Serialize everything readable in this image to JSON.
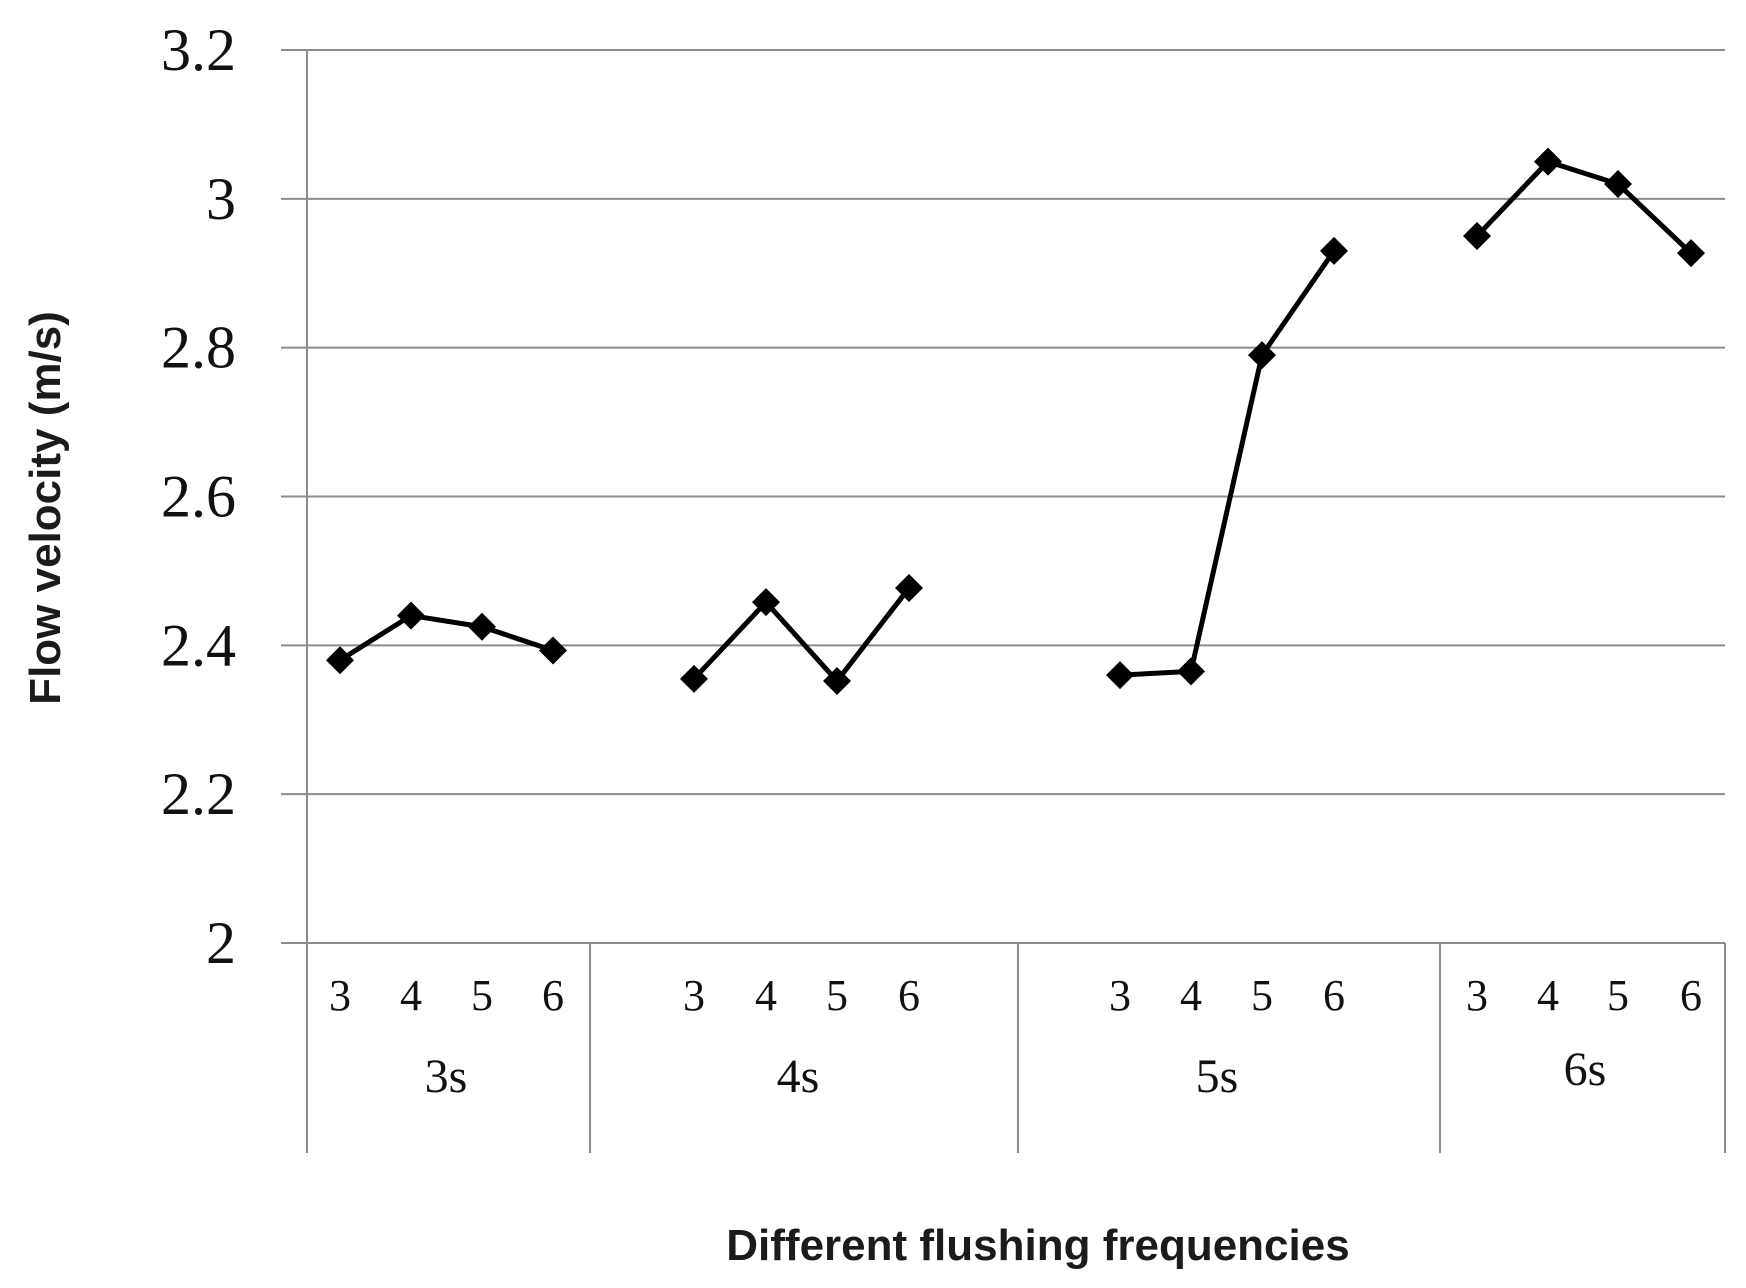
{
  "chart_data": {
    "type": "line",
    "xlabel": "Different flushing frequencies",
    "ylabel": "Flow velocity (m/s)",
    "ylim": [
      2,
      3.2
    ],
    "yticks": [
      "2",
      "2.2",
      "2.4",
      "2.6",
      "2.8",
      "3",
      "3.2"
    ],
    "grid": true,
    "groups": [
      {
        "label": "3s",
        "categories": [
          "3",
          "4",
          "5",
          "6"
        ],
        "values": [
          2.38,
          2.44,
          2.425,
          2.393
        ]
      },
      {
        "label": "4s",
        "categories": [
          "3",
          "4",
          "5",
          "6"
        ],
        "values": [
          2.355,
          2.458,
          2.352,
          2.477
        ]
      },
      {
        "label": "5s",
        "categories": [
          "3",
          "4",
          "5",
          "6"
        ],
        "values": [
          2.36,
          2.365,
          2.79,
          2.93
        ]
      },
      {
        "label": "6s",
        "categories": [
          "3",
          "4",
          "5",
          "6"
        ],
        "values": [
          2.95,
          3.05,
          3.02,
          2.927
        ]
      }
    ]
  },
  "colors": {
    "line": "#000000",
    "grid": "#8c8c8c",
    "ylabel": "#0f3a57",
    "xlabel": "#1b1b1b"
  }
}
